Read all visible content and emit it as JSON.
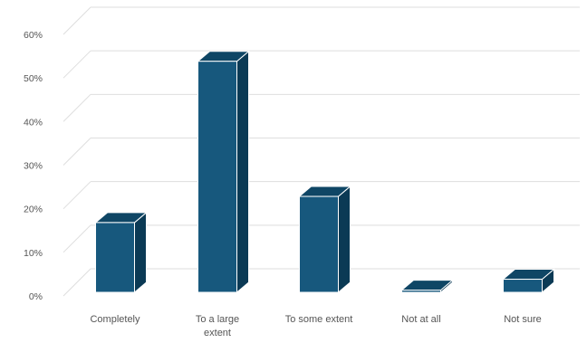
{
  "chart_data": {
    "type": "bar",
    "style": "3d-column",
    "categories": [
      "Completely",
      "To a large extent",
      "To some extent",
      "Not at all",
      "Not sure"
    ],
    "category_lines": [
      [
        "Completely"
      ],
      [
        "To a large",
        "extent"
      ],
      [
        "To some extent"
      ],
      [
        "Not at all"
      ],
      [
        "Not sure"
      ]
    ],
    "values": [
      16,
      53,
      22,
      0.5,
      3
    ],
    "y_unit": "%",
    "ylim": [
      0,
      60
    ],
    "y_ticks": [
      "0%",
      "10%",
      "20%",
      "30%",
      "40%",
      "50%",
      "60%"
    ],
    "grid": true,
    "legend": "none",
    "colors": {
      "bar_front": "#17587d",
      "bar_top": "#0f4665",
      "bar_side": "#0b3a55",
      "bar_edge": "#ffffff",
      "grid": "#dedede",
      "text": "#555555"
    }
  }
}
